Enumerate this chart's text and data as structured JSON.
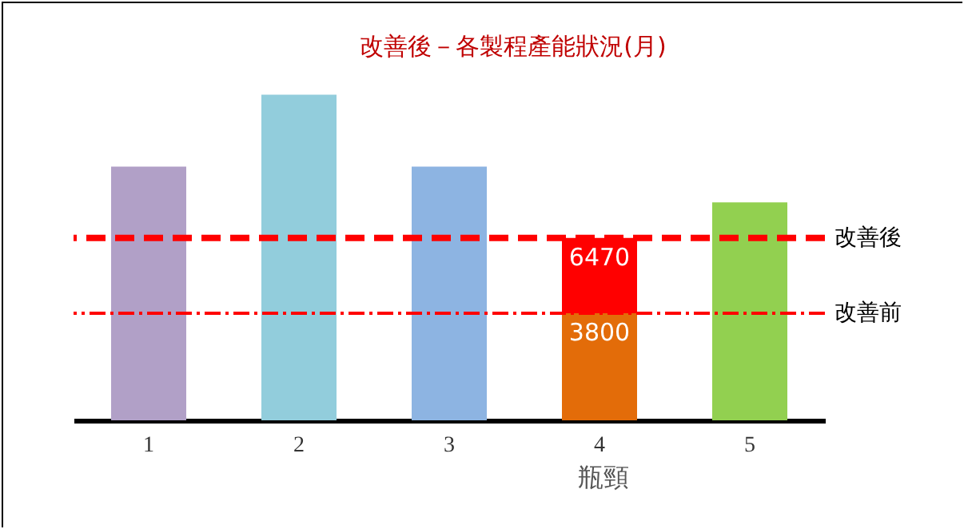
{
  "chart_data": {
    "type": "bar",
    "title": "改善後－各製程產能狀況(月)",
    "categories": [
      "1",
      "2",
      "3",
      "4",
      "5"
    ],
    "stacked": true,
    "series": [
      {
        "colors": [
          "#b1a0c7",
          "#92cddc",
          "#8db4e2",
          "#e36c09",
          "#92d050"
        ],
        "values": [
          9000,
          11550,
          9000,
          3800,
          7730
        ],
        "value_labels": [
          null,
          null,
          null,
          "3800",
          null
        ]
      },
      {
        "color": "#ff0000",
        "values": [
          0,
          0,
          0,
          2670,
          0
        ]
      }
    ],
    "totals": [
      null,
      null,
      null,
      "6470",
      null
    ],
    "ref_lines": [
      {
        "axis": "y",
        "value": 6470,
        "label": "改善後",
        "color": "#ff0000",
        "line_style": "dashed"
      },
      {
        "axis": "y",
        "value": 3800,
        "label": "改善前",
        "color": "#ff0000",
        "line_style": "dashdot"
      }
    ],
    "annotations": [
      "瓶頸"
    ]
  }
}
